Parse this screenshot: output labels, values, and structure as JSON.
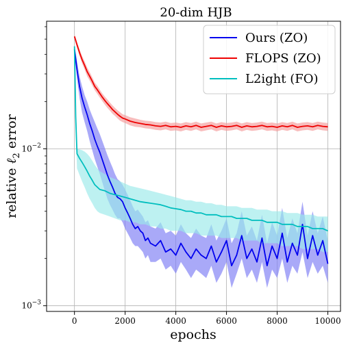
{
  "chart_data": {
    "type": "line",
    "title": "20-dim HJB",
    "xlabel": "epochs",
    "ylabel_prefix": "relative ",
    "ylabel_symbol": "ℓ",
    "ylabel_sub": "2",
    "ylabel_suffix": " error",
    "yscale": "log",
    "xlim": [
      -1100,
      10500
    ],
    "ylim": [
      0.00092,
      0.065
    ],
    "grid": true,
    "legend_position": "top-right",
    "x_ticks": [
      {
        "value": 0,
        "label": "0"
      },
      {
        "value": 2000,
        "label": "2000"
      },
      {
        "value": 4000,
        "label": "4000"
      },
      {
        "value": 6000,
        "label": "6000"
      },
      {
        "value": 8000,
        "label": "8000"
      },
      {
        "value": 10000,
        "label": "10000"
      }
    ],
    "y_major_ticks": [
      {
        "value": 0.001,
        "base": "10",
        "exp": "−3"
      },
      {
        "value": 0.01,
        "base": "10",
        "exp": "−2"
      }
    ],
    "series": [
      {
        "name": "Ours (ZO)",
        "color": "#0000ee",
        "band_color": "#7b7bf5",
        "x": [
          0,
          100,
          200,
          300,
          400,
          500,
          600,
          700,
          800,
          900,
          1000,
          1100,
          1200,
          1300,
          1400,
          1500,
          1600,
          1700,
          1800,
          1900,
          2000,
          2100,
          2200,
          2300,
          2400,
          2500,
          2600,
          2700,
          2800,
          2900,
          3000,
          3200,
          3400,
          3600,
          3800,
          4000,
          4200,
          4400,
          4600,
          4800,
          5000,
          5200,
          5400,
          5600,
          5800,
          6000,
          6200,
          6400,
          6600,
          6800,
          7000,
          7200,
          7400,
          7600,
          7800,
          8000,
          8200,
          8400,
          8600,
          8800,
          9000,
          9200,
          9400,
          9600,
          9800,
          10000
        ],
        "y": [
          0.043,
          0.032,
          0.025,
          0.021,
          0.0185,
          0.0165,
          0.0145,
          0.013,
          0.0115,
          0.0104,
          0.0095,
          0.0085,
          0.0076,
          0.0068,
          0.0062,
          0.0057,
          0.0052,
          0.0049,
          0.0048,
          0.0046,
          0.0042,
          0.0039,
          0.0036,
          0.0033,
          0.0031,
          0.0032,
          0.003,
          0.0029,
          0.0026,
          0.0027,
          0.0025,
          0.0024,
          0.0026,
          0.0022,
          0.0023,
          0.0021,
          0.0025,
          0.0022,
          0.002,
          0.0023,
          0.0021,
          0.002,
          0.0024,
          0.0019,
          0.0022,
          0.0026,
          0.0018,
          0.0021,
          0.0028,
          0.002,
          0.0023,
          0.0019,
          0.0027,
          0.0018,
          0.0024,
          0.002,
          0.0029,
          0.0019,
          0.0025,
          0.0021,
          0.0033,
          0.002,
          0.0028,
          0.0021,
          0.0026,
          0.00185
        ],
        "lower": [
          0.04,
          0.028,
          0.021,
          0.017,
          0.0148,
          0.013,
          0.0112,
          0.0098,
          0.0086,
          0.0077,
          0.0069,
          0.0061,
          0.0054,
          0.0048,
          0.0044,
          0.0041,
          0.0038,
          0.0036,
          0.0036,
          0.0034,
          0.0031,
          0.0029,
          0.0027,
          0.0025,
          0.0024,
          0.0024,
          0.0023,
          0.0022,
          0.002,
          0.0021,
          0.0019,
          0.0019,
          0.002,
          0.0017,
          0.0018,
          0.0016,
          0.0019,
          0.0017,
          0.0015,
          0.0017,
          0.0016,
          0.0015,
          0.0018,
          0.0014,
          0.0016,
          0.0019,
          0.0013,
          0.0016,
          0.002,
          0.0015,
          0.0017,
          0.0014,
          0.0019,
          0.0013,
          0.0017,
          0.0015,
          0.002,
          0.0014,
          0.0018,
          0.0016,
          0.0022,
          0.0015,
          0.0019,
          0.0016,
          0.0018,
          0.0014
        ],
        "upper": [
          0.046,
          0.036,
          0.029,
          0.025,
          0.022,
          0.02,
          0.0178,
          0.0162,
          0.0148,
          0.0135,
          0.0124,
          0.0112,
          0.0101,
          0.0091,
          0.0083,
          0.0076,
          0.0069,
          0.0064,
          0.0062,
          0.0059,
          0.0055,
          0.0051,
          0.0047,
          0.0043,
          0.004,
          0.0041,
          0.0039,
          0.0037,
          0.0034,
          0.0035,
          0.0032,
          0.0031,
          0.0034,
          0.0029,
          0.003,
          0.0028,
          0.0033,
          0.0029,
          0.0027,
          0.0031,
          0.0028,
          0.0027,
          0.0033,
          0.0026,
          0.003,
          0.0036,
          0.0025,
          0.0029,
          0.004,
          0.0028,
          0.0032,
          0.0026,
          0.0038,
          0.0025,
          0.0034,
          0.0028,
          0.0042,
          0.0027,
          0.0036,
          0.0029,
          0.0046,
          0.0028,
          0.004,
          0.0029,
          0.0037,
          0.0026
        ]
      },
      {
        "name": "FLOPS (ZO)",
        "color": "#ee0000",
        "band_color": "#f59a9a",
        "x": [
          0,
          100,
          200,
          300,
          400,
          500,
          600,
          700,
          800,
          900,
          1000,
          1100,
          1200,
          1300,
          1400,
          1500,
          1600,
          1700,
          1800,
          1900,
          2000,
          2200,
          2400,
          2600,
          2800,
          3000,
          3200,
          3400,
          3600,
          3800,
          4000,
          4200,
          4400,
          4600,
          4800,
          5000,
          5200,
          5400,
          5600,
          5800,
          6000,
          6200,
          6400,
          6600,
          6800,
          7000,
          7200,
          7400,
          7600,
          7800,
          8000,
          8200,
          8400,
          8600,
          8800,
          9000,
          9200,
          9400,
          9600,
          9800,
          10000
        ],
        "y": [
          0.052,
          0.046,
          0.041,
          0.037,
          0.034,
          0.031,
          0.029,
          0.027,
          0.025,
          0.0238,
          0.0225,
          0.0213,
          0.0203,
          0.0194,
          0.0186,
          0.0178,
          0.0172,
          0.0166,
          0.0161,
          0.0157,
          0.0155,
          0.015,
          0.0147,
          0.0145,
          0.0143,
          0.0142,
          0.014,
          0.0139,
          0.0141,
          0.0138,
          0.0139,
          0.0137,
          0.014,
          0.0138,
          0.0141,
          0.0137,
          0.0139,
          0.0141,
          0.0137,
          0.014,
          0.0138,
          0.0139,
          0.0141,
          0.0137,
          0.014,
          0.0138,
          0.0139,
          0.0141,
          0.0138,
          0.0139,
          0.0137,
          0.014,
          0.0138,
          0.0141,
          0.0137,
          0.0139,
          0.014,
          0.0138,
          0.0141,
          0.0139,
          0.0138
        ],
        "lower": [
          0.05,
          0.044,
          0.039,
          0.035,
          0.032,
          0.029,
          0.0272,
          0.0254,
          0.0236,
          0.0224,
          0.0212,
          0.0201,
          0.0191,
          0.0182,
          0.0175,
          0.0167,
          0.0162,
          0.0156,
          0.0151,
          0.0148,
          0.0146,
          0.0141,
          0.0138,
          0.0137,
          0.0135,
          0.0134,
          0.0132,
          0.0131,
          0.0133,
          0.013,
          0.0131,
          0.0129,
          0.0132,
          0.013,
          0.0133,
          0.0129,
          0.0131,
          0.0133,
          0.0129,
          0.0132,
          0.013,
          0.0131,
          0.0133,
          0.0129,
          0.0132,
          0.013,
          0.0131,
          0.0133,
          0.013,
          0.0131,
          0.0129,
          0.0132,
          0.013,
          0.0133,
          0.0129,
          0.0131,
          0.0132,
          0.013,
          0.0133,
          0.0131,
          0.013
        ],
        "upper": [
          0.054,
          0.048,
          0.043,
          0.039,
          0.036,
          0.033,
          0.0308,
          0.0286,
          0.0264,
          0.0252,
          0.0238,
          0.0225,
          0.0215,
          0.0206,
          0.0197,
          0.0189,
          0.0182,
          0.0176,
          0.0171,
          0.0166,
          0.0164,
          0.0159,
          0.0156,
          0.0153,
          0.0151,
          0.015,
          0.0148,
          0.0147,
          0.0149,
          0.0146,
          0.0147,
          0.0145,
          0.0148,
          0.0146,
          0.0149,
          0.0145,
          0.0147,
          0.0149,
          0.0145,
          0.0148,
          0.0146,
          0.0147,
          0.0149,
          0.0145,
          0.0148,
          0.0146,
          0.0147,
          0.0149,
          0.0146,
          0.0147,
          0.0145,
          0.0148,
          0.0146,
          0.0149,
          0.0145,
          0.0147,
          0.0148,
          0.0146,
          0.0149,
          0.0147,
          0.0146
        ]
      },
      {
        "name": "L2ight (FO)",
        "color": "#00bebe",
        "band_color": "#9aeaea",
        "x": [
          0,
          50,
          100,
          200,
          300,
          400,
          500,
          600,
          700,
          800,
          900,
          1000,
          1200,
          1400,
          1600,
          1800,
          2000,
          2200,
          2400,
          2600,
          2800,
          3000,
          3200,
          3400,
          3600,
          3800,
          4000,
          4200,
          4400,
          4600,
          4800,
          5000,
          5200,
          5400,
          5600,
          5800,
          6000,
          6200,
          6400,
          6600,
          6800,
          7000,
          7200,
          7400,
          7600,
          7800,
          8000,
          8200,
          8400,
          8600,
          8800,
          9000,
          9200,
          9400,
          9600,
          9800,
          10000
        ],
        "y": [
          0.045,
          0.016,
          0.0093,
          0.0087,
          0.0082,
          0.0077,
          0.0072,
          0.0067,
          0.0063,
          0.0059,
          0.0057,
          0.0055,
          0.0054,
          0.0052,
          0.0051,
          0.005,
          0.0049,
          0.0048,
          0.0047,
          0.0046,
          0.00455,
          0.0045,
          0.00445,
          0.0044,
          0.0043,
          0.0042,
          0.00415,
          0.0041,
          0.004,
          0.004,
          0.0039,
          0.0039,
          0.0038,
          0.0038,
          0.0038,
          0.0037,
          0.0037,
          0.0037,
          0.0036,
          0.0036,
          0.0036,
          0.0035,
          0.0035,
          0.0035,
          0.0034,
          0.0034,
          0.0034,
          0.0033,
          0.0033,
          0.0033,
          0.0032,
          0.0032,
          0.0032,
          0.0031,
          0.0031,
          0.0031,
          0.003
        ],
        "lower": [
          0.043,
          0.013,
          0.0075,
          0.0068,
          0.0062,
          0.0057,
          0.0052,
          0.0048,
          0.0045,
          0.0042,
          0.004,
          0.0039,
          0.0038,
          0.0037,
          0.0036,
          0.0035,
          0.0035,
          0.0034,
          0.0034,
          0.0033,
          0.0033,
          0.0032,
          0.0032,
          0.0031,
          0.0031,
          0.003,
          0.003,
          0.003,
          0.0029,
          0.0029,
          0.0029,
          0.0028,
          0.0028,
          0.0028,
          0.0028,
          0.0027,
          0.0027,
          0.0027,
          0.0027,
          0.0026,
          0.0026,
          0.0026,
          0.0026,
          0.0025,
          0.0025,
          0.0025,
          0.0025,
          0.0024,
          0.0024,
          0.0024,
          0.0024,
          0.0023,
          0.0023,
          0.0023,
          0.0023,
          0.0022,
          0.0022
        ],
        "upper": [
          0.047,
          0.019,
          0.01,
          0.0099,
          0.0098,
          0.0096,
          0.0093,
          0.0089,
          0.0084,
          0.0079,
          0.0075,
          0.0072,
          0.0069,
          0.0066,
          0.0064,
          0.0062,
          0.006,
          0.0058,
          0.0057,
          0.0056,
          0.0055,
          0.0054,
          0.0053,
          0.0052,
          0.0051,
          0.005,
          0.0049,
          0.0048,
          0.0047,
          0.0047,
          0.0046,
          0.0046,
          0.0045,
          0.0045,
          0.0044,
          0.0044,
          0.0043,
          0.0043,
          0.0043,
          0.0042,
          0.0042,
          0.0042,
          0.0041,
          0.0041,
          0.0041,
          0.004,
          0.004,
          0.004,
          0.0039,
          0.0039,
          0.0039,
          0.0038,
          0.0038,
          0.0038,
          0.0037,
          0.0037,
          0.0037
        ]
      }
    ]
  }
}
